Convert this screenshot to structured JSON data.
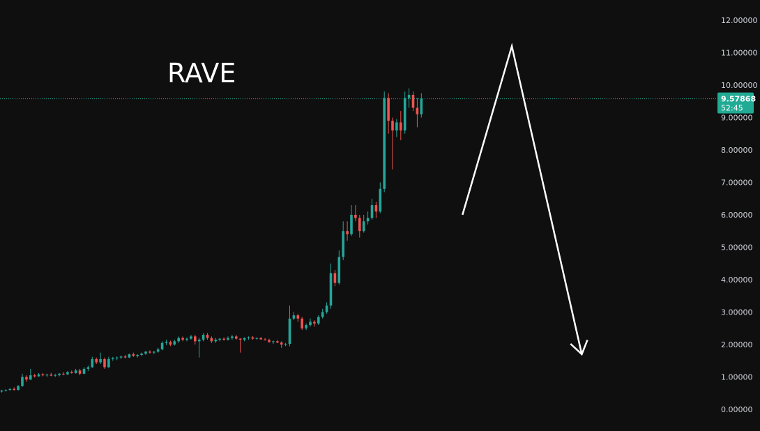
{
  "chart_data": {
    "type": "candlestick",
    "title": "RAVE",
    "xlabel": "",
    "ylabel": "",
    "ylim": [
      0,
      12
    ],
    "y_ticks": [
      "0.00000",
      "1.00000",
      "2.00000",
      "3.00000",
      "4.00000",
      "5.00000",
      "6.00000",
      "7.00000",
      "8.00000",
      "9.00000",
      "10.00000",
      "11.00000",
      "12.00000"
    ],
    "grid": false,
    "legend": "none",
    "last_price": {
      "value": "9.57868",
      "countdown": "52:45"
    },
    "colors": {
      "background": "#0f0f0f",
      "up": "#26a69a",
      "down": "#ef5350",
      "axis_text": "#d1d4dc",
      "price_line": "#22ab94",
      "annotation": "#ffffff"
    },
    "annotation_arrow": {
      "type": "polyline-arrow",
      "points": [
        [
          112,
          6.0
        ],
        [
          124,
          11.2
        ],
        [
          141,
          1.7
        ]
      ]
    },
    "candles": [
      [
        0.55,
        0.6,
        0.52,
        0.58
      ],
      [
        0.58,
        0.62,
        0.55,
        0.6
      ],
      [
        0.6,
        0.65,
        0.57,
        0.63
      ],
      [
        0.63,
        0.68,
        0.58,
        0.6
      ],
      [
        0.6,
        0.75,
        0.58,
        0.72
      ],
      [
        0.72,
        1.1,
        0.7,
        1.0
      ],
      [
        1.0,
        1.05,
        0.85,
        0.92
      ],
      [
        0.92,
        1.25,
        0.9,
        1.05
      ],
      [
        1.05,
        1.1,
        0.98,
        1.02
      ],
      [
        1.02,
        1.12,
        1.0,
        1.08
      ],
      [
        1.08,
        1.12,
        1.02,
        1.05
      ],
      [
        1.05,
        1.1,
        1.0,
        1.07
      ],
      [
        1.07,
        1.13,
        1.02,
        1.04
      ],
      [
        1.04,
        1.1,
        1.0,
        1.06
      ],
      [
        1.06,
        1.12,
        1.02,
        1.1
      ],
      [
        1.1,
        1.15,
        1.05,
        1.08
      ],
      [
        1.08,
        1.18,
        1.06,
        1.15
      ],
      [
        1.15,
        1.2,
        1.1,
        1.12
      ],
      [
        1.12,
        1.25,
        1.1,
        1.2
      ],
      [
        1.2,
        1.25,
        1.05,
        1.1
      ],
      [
        1.1,
        1.3,
        1.08,
        1.25
      ],
      [
        1.25,
        1.35,
        1.18,
        1.3
      ],
      [
        1.3,
        1.62,
        1.28,
        1.55
      ],
      [
        1.55,
        1.6,
        1.4,
        1.45
      ],
      [
        1.45,
        1.75,
        1.4,
        1.55
      ],
      [
        1.55,
        1.6,
        1.25,
        1.3
      ],
      [
        1.3,
        1.62,
        1.28,
        1.55
      ],
      [
        1.55,
        1.62,
        1.5,
        1.58
      ],
      [
        1.58,
        1.63,
        1.52,
        1.6
      ],
      [
        1.6,
        1.66,
        1.55,
        1.63
      ],
      [
        1.63,
        1.68,
        1.57,
        1.6
      ],
      [
        1.6,
        1.72,
        1.58,
        1.7
      ],
      [
        1.7,
        1.75,
        1.62,
        1.65
      ],
      [
        1.65,
        1.7,
        1.6,
        1.68
      ],
      [
        1.68,
        1.75,
        1.64,
        1.72
      ],
      [
        1.72,
        1.8,
        1.68,
        1.78
      ],
      [
        1.78,
        1.82,
        1.72,
        1.75
      ],
      [
        1.75,
        1.8,
        1.7,
        1.78
      ],
      [
        1.78,
        1.9,
        1.75,
        1.85
      ],
      [
        1.85,
        2.1,
        1.82,
        2.05
      ],
      [
        2.05,
        2.15,
        1.98,
        2.08
      ],
      [
        2.08,
        2.12,
        1.95,
        2.0
      ],
      [
        2.0,
        2.15,
        1.97,
        2.1
      ],
      [
        2.1,
        2.25,
        2.05,
        2.2
      ],
      [
        2.2,
        2.25,
        2.1,
        2.15
      ],
      [
        2.15,
        2.22,
        2.1,
        2.18
      ],
      [
        2.18,
        2.3,
        2.15,
        2.25
      ],
      [
        2.25,
        2.3,
        2.0,
        2.1
      ],
      [
        2.1,
        2.2,
        1.6,
        2.15
      ],
      [
        2.15,
        2.35,
        2.1,
        2.3
      ],
      [
        2.3,
        2.35,
        2.15,
        2.2
      ],
      [
        2.2,
        2.25,
        2.05,
        2.1
      ],
      [
        2.1,
        2.2,
        2.05,
        2.15
      ],
      [
        2.15,
        2.2,
        2.1,
        2.18
      ],
      [
        2.18,
        2.22,
        2.12,
        2.15
      ],
      [
        2.15,
        2.25,
        2.12,
        2.2
      ],
      [
        2.2,
        2.3,
        2.15,
        2.25
      ],
      [
        2.25,
        2.3,
        2.15,
        2.18
      ],
      [
        2.18,
        2.2,
        1.75,
        2.15
      ],
      [
        2.15,
        2.22,
        2.1,
        2.2
      ],
      [
        2.2,
        2.25,
        2.15,
        2.22
      ],
      [
        2.22,
        2.26,
        2.15,
        2.18
      ],
      [
        2.18,
        2.22,
        2.15,
        2.2
      ],
      [
        2.2,
        2.23,
        2.14,
        2.16
      ],
      [
        2.16,
        2.2,
        2.12,
        2.14
      ],
      [
        2.14,
        2.18,
        2.05,
        2.08
      ],
      [
        2.08,
        2.12,
        2.02,
        2.1
      ],
      [
        2.1,
        2.14,
        2.04,
        2.06
      ],
      [
        2.06,
        2.1,
        1.9,
        2.0
      ],
      [
        2.0,
        2.05,
        1.95,
        2.02
      ],
      [
        2.02,
        3.2,
        1.95,
        2.8
      ],
      [
        2.8,
        3.0,
        2.75,
        2.9
      ],
      [
        2.9,
        2.95,
        2.7,
        2.8
      ],
      [
        2.8,
        2.85,
        2.45,
        2.5
      ],
      [
        2.5,
        2.65,
        2.45,
        2.6
      ],
      [
        2.6,
        2.8,
        2.55,
        2.7
      ],
      [
        2.7,
        2.75,
        2.55,
        2.65
      ],
      [
        2.65,
        2.9,
        2.6,
        2.85
      ],
      [
        2.85,
        3.1,
        2.8,
        3.0
      ],
      [
        3.0,
        3.3,
        2.95,
        3.2
      ],
      [
        3.2,
        4.5,
        3.1,
        4.2
      ],
      [
        4.2,
        4.3,
        3.8,
        3.9
      ],
      [
        3.9,
        4.9,
        3.85,
        4.7
      ],
      [
        4.7,
        5.8,
        4.6,
        5.5
      ],
      [
        5.5,
        5.8,
        5.2,
        5.4
      ],
      [
        5.4,
        6.3,
        5.35,
        6.0
      ],
      [
        6.0,
        6.3,
        5.8,
        5.9
      ],
      [
        5.9,
        6.0,
        5.3,
        5.5
      ],
      [
        5.5,
        6.0,
        5.45,
        5.8
      ],
      [
        5.8,
        6.1,
        5.7,
        5.9
      ],
      [
        5.9,
        6.5,
        5.85,
        6.3
      ],
      [
        6.3,
        6.4,
        5.9,
        6.1
      ],
      [
        6.1,
        7.0,
        6.05,
        6.8
      ],
      [
        6.8,
        9.8,
        6.7,
        9.6
      ],
      [
        9.6,
        9.75,
        8.5,
        8.9
      ],
      [
        8.9,
        9.0,
        7.4,
        8.6
      ],
      [
        8.6,
        8.95,
        8.4,
        8.85
      ],
      [
        8.85,
        9.2,
        8.3,
        8.6
      ],
      [
        8.6,
        9.8,
        8.5,
        9.6
      ],
      [
        9.6,
        9.9,
        9.3,
        9.7
      ],
      [
        9.7,
        9.8,
        9.2,
        9.3
      ],
      [
        9.3,
        9.6,
        8.7,
        9.1
      ],
      [
        9.1,
        9.75,
        9.0,
        9.58
      ]
    ]
  }
}
